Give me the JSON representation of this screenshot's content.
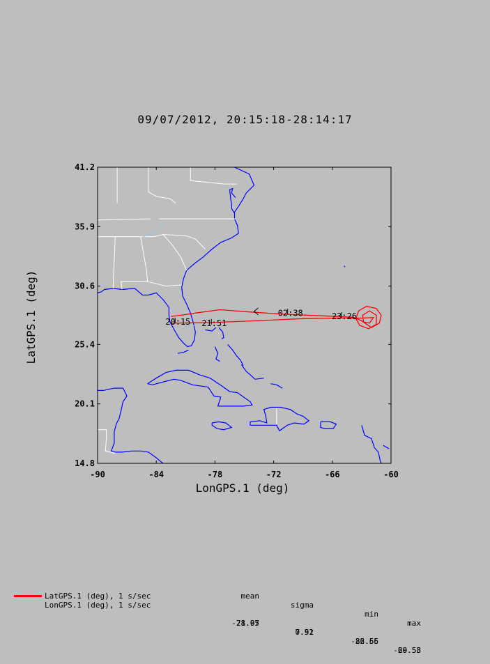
{
  "title": "09/07/2012, 20:15:18-28:14:17",
  "chart_data": {
    "type": "line",
    "title": "09/07/2012, 20:15:18-28:14:17",
    "xlabel": "LonGPS.1 (deg)",
    "ylabel": "LatGPS.1 (deg)",
    "xlim": [
      -90,
      -60
    ],
    "ylim": [
      14.8,
      41.2
    ],
    "x_ticks": [
      "-90",
      "-84",
      "-78",
      "-72",
      "-66",
      "-60"
    ],
    "y_ticks": [
      "14.8",
      "20.1",
      "25.4",
      "30.6",
      "35.9",
      "41.2"
    ],
    "track_color": "#ff0000",
    "coast_color": "#0000ff",
    "border_color": "#ffffff",
    "series": [
      {
        "name": "LatGPS.1 vs LonGPS.1",
        "points": [
          [
            -82.5,
            27.9
          ],
          [
            -81.5,
            28.0
          ],
          [
            -80.0,
            28.2
          ],
          [
            -77.5,
            28.5
          ],
          [
            -74.5,
            28.3
          ],
          [
            -71.0,
            28.1
          ],
          [
            -67.0,
            27.95
          ],
          [
            -64.5,
            27.85
          ],
          [
            -63.8,
            27.8
          ],
          [
            -63.0,
            27.5
          ],
          [
            -62.0,
            26.9
          ],
          [
            -61.2,
            27.3
          ],
          [
            -61.0,
            28.0
          ],
          [
            -61.5,
            28.6
          ],
          [
            -62.5,
            28.8
          ],
          [
            -63.3,
            28.4
          ],
          [
            -63.6,
            27.7
          ],
          [
            -63.2,
            27.1
          ],
          [
            -62.3,
            26.8
          ],
          [
            -61.5,
            27.2
          ],
          [
            -61.5,
            28.0
          ],
          [
            -62.2,
            28.4
          ],
          [
            -62.9,
            28.0
          ],
          [
            -62.8,
            27.4
          ],
          [
            -62.2,
            27.3
          ],
          [
            -61.8,
            27.8
          ],
          [
            -63.0,
            27.75
          ],
          [
            -65.0,
            27.75
          ],
          [
            -69.0,
            27.7
          ],
          [
            -74.0,
            27.5
          ],
          [
            -78.5,
            27.35
          ],
          [
            -82.5,
            27.3
          ]
        ]
      }
    ],
    "time_labels": [
      {
        "text": "20:15",
        "lon": -81.5,
        "lat": 27.4
      },
      {
        "text": "21:51",
        "lon": -77.8,
        "lat": 27.3
      },
      {
        "text": "02:38",
        "lon": -70.0,
        "lat": 28.2
      },
      {
        "text": "23:26",
        "lon": -64.5,
        "lat": 27.9
      }
    ]
  },
  "legend": {
    "headers": [
      "mean",
      "sigma",
      "min",
      "max"
    ],
    "rows": [
      {
        "name": "LatGPS.1 (deg), 1 s/sec",
        "mean": "28.05",
        "sigma": "0.52",
        "min": "26.66",
        "max": "29.58"
      },
      {
        "name": "LonGPS.1 (deg), 1 s/sec",
        "mean": "-71.97",
        "sigma": "7.91",
        "min": "-82.55",
        "max": "-60.53"
      }
    ]
  }
}
